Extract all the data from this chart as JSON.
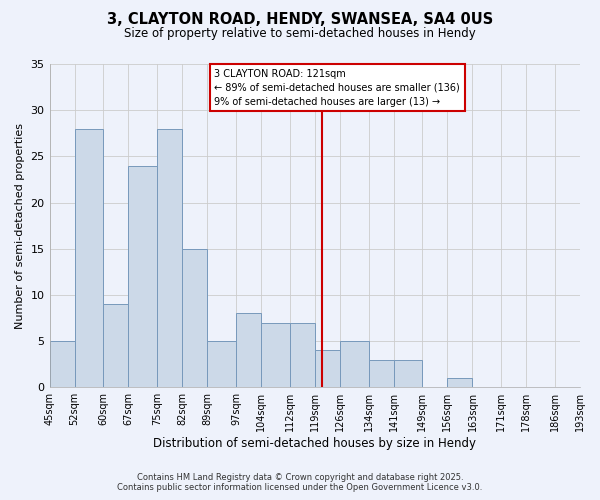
{
  "title_line1": "3, CLAYTON ROAD, HENDY, SWANSEA, SA4 0US",
  "title_line2": "Size of property relative to semi-detached houses in Hendy",
  "xlabel": "Distribution of semi-detached houses by size in Hendy",
  "ylabel": "Number of semi-detached properties",
  "bin_edges": [
    45,
    52,
    60,
    67,
    75,
    82,
    89,
    97,
    104,
    112,
    119,
    126,
    134,
    141,
    149,
    156,
    163,
    171,
    178,
    186,
    193
  ],
  "counts": [
    5,
    28,
    9,
    24,
    28,
    15,
    5,
    8,
    7,
    7,
    4,
    5,
    3,
    3,
    0,
    1,
    0,
    0,
    0,
    0
  ],
  "bar_color": "#ccd9e8",
  "bar_edgecolor": "#7799bb",
  "property_value": 121,
  "vline_color": "#cc0000",
  "annotation_line1": "3 CLAYTON ROAD: 121sqm",
  "annotation_line2": "← 89% of semi-detached houses are smaller (136)",
  "annotation_line3": "9% of semi-detached houses are larger (13) →",
  "annotation_box_edgecolor": "#cc0000",
  "ylim": [
    0,
    35
  ],
  "yticks": [
    0,
    5,
    10,
    15,
    20,
    25,
    30,
    35
  ],
  "background_color": "#eef2fb",
  "grid_color": "#cccccc",
  "footer_line1": "Contains HM Land Registry data © Crown copyright and database right 2025.",
  "footer_line2": "Contains public sector information licensed under the Open Government Licence v3.0."
}
